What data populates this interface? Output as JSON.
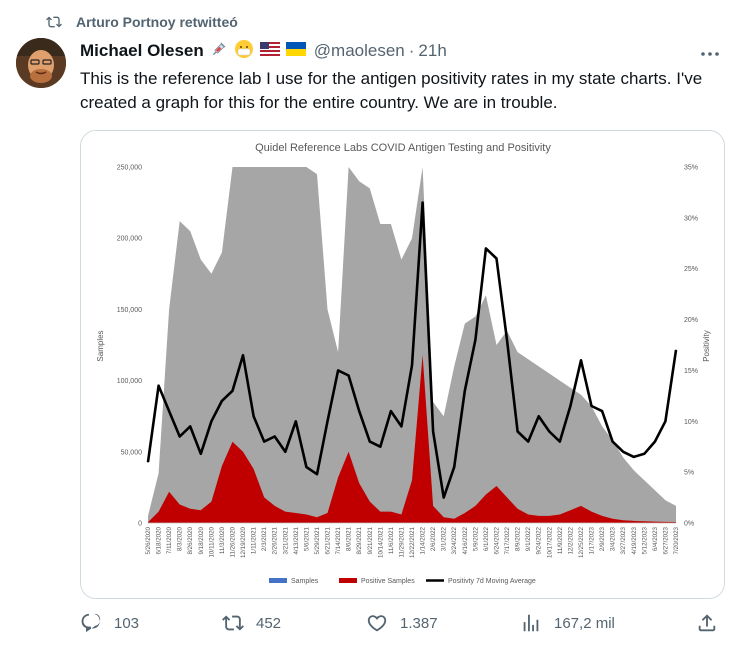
{
  "retweet": {
    "label": "Arturo Portnoy retwitteó",
    "icon": "retweet-icon"
  },
  "tweet": {
    "author_name": "Michael Olesen",
    "handle": "@maolesen",
    "separator": "·",
    "time": "21h",
    "text": "This is the reference lab I use for the antigen positivity rates in my state charts. I've created a graph for this for the entire country. We are in trouble.",
    "emojis": [
      "syringe-icon",
      "mask-face-icon",
      "us-flag-icon",
      "ukraine-flag-icon"
    ],
    "more_icon": "more-icon"
  },
  "actions": {
    "replies": "103",
    "retweets": "452",
    "likes": "1.387",
    "views": "167,2 mil"
  },
  "colors": {
    "samples_area": "#a6a6a6",
    "positive_area": "#c00000",
    "moving_average": "#000000",
    "legend_samples": "#4472c4",
    "legend_positive": "#c00000",
    "muted_text": "#536471",
    "border": "#cfd9de"
  },
  "chart_data": {
    "type": "area",
    "title": "Quidel Reference Labs COVID Antigen Testing and Positivity",
    "ylabel": "Samples",
    "y2label": "Positivity",
    "ylim": [
      0,
      250000
    ],
    "y2lim": [
      0,
      35
    ],
    "y_ticks": [
      "250,000",
      "200,000",
      "150,000",
      "100,000",
      "50,000",
      "0"
    ],
    "y2_ticks": [
      "35%",
      "30%",
      "25%",
      "20%",
      "15%",
      "10%",
      "5%",
      "0%"
    ],
    "x_ticks": [
      "5/26/2020",
      "6/18/2020",
      "7/11/2020",
      "8/3/2020",
      "8/26/2020",
      "9/18/2020",
      "10/11/2020",
      "11/3/2020",
      "11/26/2020",
      "12/19/2020",
      "1/11/2021",
      "2/3/2021",
      "2/26/2021",
      "3/21/2021",
      "4/13/2021",
      "5/6/2021",
      "5/29/2021",
      "6/21/2021",
      "7/14/2021",
      "8/6/2021",
      "8/29/2021",
      "9/21/2021",
      "10/14/2021",
      "11/6/2021",
      "11/29/2021",
      "12/22/2021",
      "1/14/2022",
      "2/6/2022",
      "3/1/2022",
      "3/24/2022",
      "4/16/2022",
      "5/9/2022",
      "6/1/2022",
      "6/24/2022",
      "7/17/2022",
      "8/9/2022",
      "9/1/2022",
      "9/24/2022",
      "10/17/2022",
      "11/9/2022",
      "12/2/2022",
      "12/25/2022",
      "1/17/2023",
      "2/9/2023",
      "3/4/2023",
      "3/27/2023",
      "4/19/2023",
      "5/12/2023",
      "6/4/2023",
      "6/27/2023",
      "7/20/2023"
    ],
    "legend_position": "bottom",
    "legend": [
      "Samples",
      "Positive Samples",
      "Positivty 7d Moving Average"
    ],
    "series": [
      {
        "name": "Samples",
        "type": "area",
        "values": [
          5000,
          35000,
          150000,
          212000,
          205000,
          185000,
          175000,
          190000,
          250000,
          250000,
          250000,
          250000,
          250000,
          250000,
          250000,
          250000,
          245000,
          150000,
          120000,
          250000,
          240000,
          235000,
          210000,
          210000,
          185000,
          200000,
          250000,
          85000,
          75000,
          110000,
          140000,
          145000,
          160000,
          125000,
          135000,
          120000,
          115000,
          110000,
          105000,
          100000,
          95000,
          90000,
          82000,
          68000,
          58000,
          46000,
          37000,
          30000,
          23000,
          16000,
          12000
        ]
      },
      {
        "name": "Positive Samples",
        "type": "area",
        "values": [
          500,
          8000,
          22000,
          13000,
          10000,
          9000,
          15000,
          40000,
          57000,
          50000,
          38000,
          18000,
          12000,
          8000,
          7000,
          6000,
          4000,
          7000,
          32000,
          50000,
          28000,
          15000,
          8000,
          8000,
          6000,
          30000,
          118000,
          12000,
          4000,
          3000,
          7000,
          12000,
          20000,
          26000,
          18000,
          10000,
          6000,
          5000,
          5000,
          6000,
          9000,
          12000,
          8000,
          5000,
          3000,
          2000,
          1500,
          1200,
          1000,
          800,
          700
        ]
      },
      {
        "name": "Positivty 7d Moving Average",
        "type": "line",
        "axis": "right",
        "values": [
          6.0,
          13.5,
          11.0,
          8.5,
          9.5,
          6.8,
          10.0,
          12.0,
          13.0,
          16.5,
          10.5,
          8.0,
          8.5,
          7.0,
          10.0,
          5.5,
          4.8,
          10.0,
          15.0,
          14.5,
          11.0,
          8.0,
          7.5,
          11.0,
          9.5,
          15.5,
          31.5,
          9.0,
          2.5,
          5.5,
          13.0,
          18.0,
          27.0,
          26.0,
          18.0,
          9.0,
          8.0,
          10.5,
          9.0,
          8.0,
          11.5,
          16.0,
          11.5,
          11.0,
          8.0,
          7.0,
          6.5,
          6.8,
          8.0,
          10.0,
          17.0
        ]
      }
    ]
  }
}
